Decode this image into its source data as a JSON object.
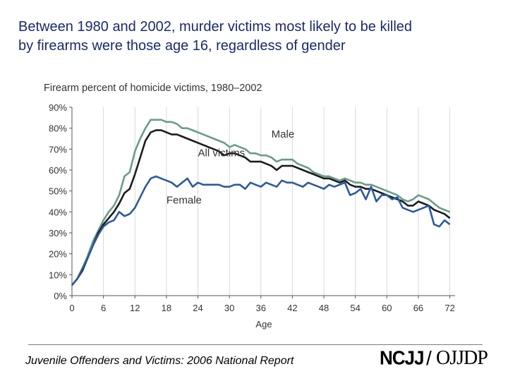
{
  "slide": {
    "title_line1": "Between 1980 and 2002, murder victims most likely to be killed",
    "title_line2": "by firearms were those age 16, regardless of gender"
  },
  "footer": {
    "text": "Juvenile Offenders and Victims: 2006 National Report",
    "logo_left": "NCJJ",
    "logo_slash": "/",
    "logo_right": "OJJDP"
  },
  "chart_data": {
    "type": "line",
    "title": "Firearm percent of homicide victims, 1980–2002",
    "xlabel": "Age",
    "ylabel": "",
    "xlim": [
      0,
      73
    ],
    "ylim": [
      0,
      90
    ],
    "x_ticks": [
      0,
      6,
      12,
      18,
      24,
      30,
      36,
      42,
      48,
      54,
      60,
      66,
      72
    ],
    "y_ticks": [
      0,
      10,
      20,
      30,
      40,
      50,
      60,
      70,
      80,
      90
    ],
    "y_tick_labels": [
      "0%",
      "10%",
      "20%",
      "30%",
      "40%",
      "50%",
      "60%",
      "70%",
      "80%",
      "90%"
    ],
    "grid": "vertical",
    "x": [
      0,
      1,
      2,
      3,
      4,
      5,
      6,
      7,
      8,
      9,
      10,
      11,
      12,
      13,
      14,
      15,
      16,
      17,
      18,
      19,
      20,
      21,
      22,
      23,
      24,
      25,
      26,
      27,
      28,
      29,
      30,
      31,
      32,
      33,
      34,
      35,
      36,
      37,
      38,
      39,
      40,
      41,
      42,
      43,
      44,
      45,
      46,
      47,
      48,
      49,
      50,
      51,
      52,
      53,
      54,
      55,
      56,
      57,
      58,
      59,
      60,
      61,
      62,
      63,
      64,
      65,
      66,
      67,
      68,
      69,
      70,
      71,
      72
    ],
    "series": [
      {
        "name": "Male",
        "color": "#6a9c86",
        "label_position": [
          38,
          75.5
        ],
        "values": [
          5,
          8,
          13,
          19,
          26,
          31,
          36,
          40,
          43,
          48,
          57,
          59,
          69,
          75,
          80,
          84,
          84,
          84,
          83,
          83,
          82,
          80,
          80,
          79,
          78,
          77,
          76,
          75,
          74,
          73,
          71,
          72,
          71,
          70,
          68,
          68,
          67,
          67,
          66,
          64,
          65,
          65,
          65,
          63,
          62,
          61,
          59,
          58,
          57,
          57,
          56,
          55,
          56,
          55,
          54,
          54,
          53,
          53,
          52,
          51,
          50,
          49,
          48,
          46,
          45,
          46,
          48,
          47,
          46,
          44,
          42,
          41,
          40
        ]
      },
      {
        "name": "All victims",
        "color": "#1c1c1c",
        "label_position": [
          24,
          66.5
        ],
        "values": [
          5,
          8,
          12,
          18,
          24,
          30,
          34,
          37,
          40,
          44,
          49,
          51,
          58,
          66,
          74,
          78,
          79,
          79,
          78,
          77,
          77,
          76,
          75,
          74,
          73,
          72,
          71,
          70,
          69,
          67,
          68,
          68,
          67,
          66,
          64,
          64,
          64,
          63,
          62,
          60,
          62,
          62,
          62,
          61,
          60,
          59,
          58,
          57,
          56,
          56,
          55,
          54,
          55,
          53,
          52,
          52,
          51,
          51,
          50,
          49,
          48,
          47,
          46,
          45,
          43,
          43,
          45,
          44,
          43,
          41,
          40,
          39,
          37
        ]
      },
      {
        "name": "Female",
        "color": "#2c5aa0",
        "label_position": [
          18,
          44
        ],
        "values": [
          5,
          8,
          13,
          18,
          24,
          29,
          33,
          35,
          36,
          40,
          38,
          39,
          42,
          47,
          52,
          56,
          57,
          56,
          55,
          54,
          52,
          54,
          56,
          52,
          54,
          53,
          53,
          53,
          53,
          52,
          52,
          53,
          53,
          51,
          54,
          53,
          52,
          54,
          53,
          52,
          55,
          54,
          54,
          53,
          52,
          54,
          53,
          52,
          51,
          53,
          52,
          53,
          54,
          48,
          49,
          51,
          46,
          52,
          45,
          48,
          48,
          46,
          47,
          42,
          41,
          40,
          41,
          42,
          43,
          34,
          33,
          36,
          34
        ]
      }
    ]
  }
}
